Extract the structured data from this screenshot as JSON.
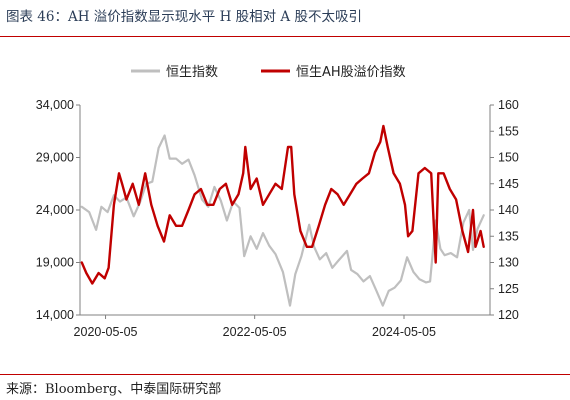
{
  "figure": {
    "title": "图表 46：AH 溢价指数显示现水平 H 股相对 A 股不太吸引",
    "source": "来源：Bloomberg、中泰国际研究部"
  },
  "chart_data": {
    "type": "line",
    "title": "",
    "xlabel": "",
    "ylabel_left": "",
    "ylabel_right": "",
    "x_tick_labels": [
      "2020-05-05",
      "2022-05-05",
      "2024-05-05"
    ],
    "x_range": [
      "2020-01-01",
      "2025-06-30"
    ],
    "left_axis": {
      "ylim": [
        14000,
        34000
      ],
      "ticks": [
        "14,000",
        "19,000",
        "24,000",
        "29,000",
        "34,000"
      ]
    },
    "right_axis": {
      "ylim": [
        120,
        160
      ],
      "ticks": [
        "120",
        "125",
        "130",
        "135",
        "140",
        "145",
        "150",
        "155",
        "160"
      ]
    },
    "legend_position": "top",
    "grid": false,
    "series": [
      {
        "name": "恒生指数",
        "axis": "left",
        "color": "#bfbfbf",
        "points": [
          [
            "2020-01-10",
            24300
          ],
          [
            "2020-02-15",
            23800
          ],
          [
            "2020-03-20",
            22100
          ],
          [
            "2020-04-15",
            24300
          ],
          [
            "2020-05-15",
            23800
          ],
          [
            "2020-06-15",
            25400
          ],
          [
            "2020-07-15",
            24800
          ],
          [
            "2020-08-15",
            25200
          ],
          [
            "2020-09-20",
            23400
          ],
          [
            "2020-10-20",
            24700
          ],
          [
            "2020-11-20",
            26500
          ],
          [
            "2020-12-20",
            26700
          ],
          [
            "2021-01-20",
            29900
          ],
          [
            "2021-02-18",
            31100
          ],
          [
            "2021-03-15",
            28900
          ],
          [
            "2021-04-15",
            28900
          ],
          [
            "2021-05-15",
            28400
          ],
          [
            "2021-06-15",
            28800
          ],
          [
            "2021-07-15",
            27300
          ],
          [
            "2021-08-20",
            25000
          ],
          [
            "2021-09-20",
            24300
          ],
          [
            "2021-10-20",
            26200
          ],
          [
            "2021-11-20",
            24900
          ],
          [
            "2021-12-20",
            23000
          ],
          [
            "2022-01-20",
            24800
          ],
          [
            "2022-02-20",
            24200
          ],
          [
            "2022-03-15",
            19600
          ],
          [
            "2022-04-15",
            21500
          ],
          [
            "2022-05-15",
            20300
          ],
          [
            "2022-06-15",
            21800
          ],
          [
            "2022-07-15",
            20600
          ],
          [
            "2022-08-15",
            19800
          ],
          [
            "2022-09-20",
            18100
          ],
          [
            "2022-10-25",
            14900
          ],
          [
            "2022-11-20",
            17900
          ],
          [
            "2022-12-20",
            19600
          ],
          [
            "2023-01-27",
            22600
          ],
          [
            "2023-02-20",
            20500
          ],
          [
            "2023-03-20",
            19300
          ],
          [
            "2023-04-20",
            19900
          ],
          [
            "2023-05-20",
            18500
          ],
          [
            "2023-06-20",
            19200
          ],
          [
            "2023-07-31",
            20100
          ],
          [
            "2023-08-20",
            18300
          ],
          [
            "2023-09-20",
            17900
          ],
          [
            "2023-10-20",
            17200
          ],
          [
            "2023-11-20",
            17700
          ],
          [
            "2023-12-20",
            16400
          ],
          [
            "2024-01-22",
            14900
          ],
          [
            "2024-02-20",
            16300
          ],
          [
            "2024-03-20",
            16600
          ],
          [
            "2024-04-20",
            17300
          ],
          [
            "2024-05-20",
            19500
          ],
          [
            "2024-06-20",
            18100
          ],
          [
            "2024-07-20",
            17400
          ],
          [
            "2024-08-20",
            17100
          ],
          [
            "2024-09-10",
            17200
          ],
          [
            "2024-10-07",
            23000
          ],
          [
            "2024-10-30",
            20300
          ],
          [
            "2024-11-20",
            19700
          ],
          [
            "2024-12-20",
            19900
          ],
          [
            "2025-01-20",
            19500
          ],
          [
            "2025-02-20",
            22800
          ],
          [
            "2025-03-20",
            24000
          ],
          [
            "2025-04-08",
            20200
          ],
          [
            "2025-04-30",
            22200
          ],
          [
            "2025-05-30",
            23500
          ]
        ]
      },
      {
        "name": "恒生AH股溢价指数",
        "axis": "right",
        "color": "#c00000",
        "points": [
          [
            "2020-01-10",
            130
          ],
          [
            "2020-02-01",
            128
          ],
          [
            "2020-03-01",
            126
          ],
          [
            "2020-04-01",
            128
          ],
          [
            "2020-05-01",
            127
          ],
          [
            "2020-05-20",
            129
          ],
          [
            "2020-06-15",
            141
          ],
          [
            "2020-07-10",
            147
          ],
          [
            "2020-07-25",
            145
          ],
          [
            "2020-08-15",
            142
          ],
          [
            "2020-09-15",
            145
          ],
          [
            "2020-10-15",
            141
          ],
          [
            "2020-11-15",
            147
          ],
          [
            "2020-12-15",
            141
          ],
          [
            "2021-01-15",
            137
          ],
          [
            "2021-02-15",
            134
          ],
          [
            "2021-03-15",
            139
          ],
          [
            "2021-04-15",
            137
          ],
          [
            "2021-05-15",
            137
          ],
          [
            "2021-06-15",
            140
          ],
          [
            "2021-07-15",
            143
          ],
          [
            "2021-08-15",
            144
          ],
          [
            "2021-09-15",
            141
          ],
          [
            "2021-10-15",
            141
          ],
          [
            "2021-11-15",
            144
          ],
          [
            "2021-12-15",
            145
          ],
          [
            "2022-01-15",
            141
          ],
          [
            "2022-02-15",
            143
          ],
          [
            "2022-03-10",
            147
          ],
          [
            "2022-03-20",
            152
          ],
          [
            "2022-04-15",
            144
          ],
          [
            "2022-05-15",
            146
          ],
          [
            "2022-06-15",
            141
          ],
          [
            "2022-07-15",
            143
          ],
          [
            "2022-08-15",
            145
          ],
          [
            "2022-09-15",
            144
          ],
          [
            "2022-10-15",
            152
          ],
          [
            "2022-10-31",
            152
          ],
          [
            "2022-11-15",
            143
          ],
          [
            "2022-12-15",
            136
          ],
          [
            "2023-01-15",
            133
          ],
          [
            "2023-02-10",
            133
          ],
          [
            "2023-03-15",
            137
          ],
          [
            "2023-04-15",
            141
          ],
          [
            "2023-05-15",
            144
          ],
          [
            "2023-06-15",
            143
          ],
          [
            "2023-07-15",
            141
          ],
          [
            "2023-08-15",
            143
          ],
          [
            "2023-09-15",
            145
          ],
          [
            "2023-10-15",
            146
          ],
          [
            "2023-11-15",
            147
          ],
          [
            "2023-12-15",
            151
          ],
          [
            "2024-01-10",
            153
          ],
          [
            "2024-01-25",
            156
          ],
          [
            "2024-02-15",
            152
          ],
          [
            "2024-03-15",
            147
          ],
          [
            "2024-04-15",
            145
          ],
          [
            "2024-05-10",
            141
          ],
          [
            "2024-05-25",
            135
          ],
          [
            "2024-06-15",
            136
          ],
          [
            "2024-07-15",
            147
          ],
          [
            "2024-08-15",
            148
          ],
          [
            "2024-09-15",
            147
          ],
          [
            "2024-10-07",
            130
          ],
          [
            "2024-10-20",
            147
          ],
          [
            "2024-11-15",
            147
          ],
          [
            "2024-12-15",
            144
          ],
          [
            "2025-01-15",
            142
          ],
          [
            "2025-02-15",
            136
          ],
          [
            "2025-03-15",
            132
          ],
          [
            "2025-04-08",
            140
          ],
          [
            "2025-04-20",
            133
          ],
          [
            "2025-05-15",
            136
          ],
          [
            "2025-05-30",
            133
          ]
        ]
      }
    ]
  }
}
